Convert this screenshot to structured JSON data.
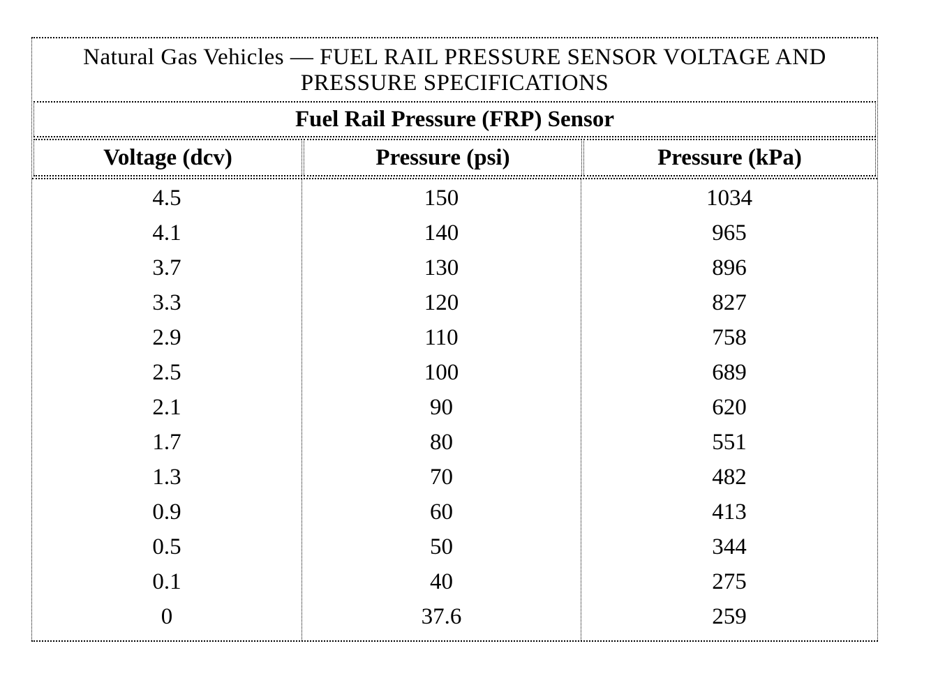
{
  "page": {
    "background": "#ffffff",
    "text_color": "#000000",
    "border_color": "#000000"
  },
  "table": {
    "title_line1": "Natural Gas Vehicles — FUEL RAIL PRESSURE SENSOR VOLTAGE AND",
    "title_line2": "PRESSURE SPECIFICATIONS",
    "subtitle": "Fuel Rail Pressure (FRP) Sensor",
    "columns": [
      "Voltage (dcv)",
      "Pressure (psi)",
      "Pressure (kPa)"
    ],
    "rows": [
      [
        "4.5",
        "150",
        "1034"
      ],
      [
        "4.1",
        "140",
        "965"
      ],
      [
        "3.7",
        "130",
        "896"
      ],
      [
        "3.3",
        "120",
        "827"
      ],
      [
        "2.9",
        "110",
        "758"
      ],
      [
        "2.5",
        "100",
        "689"
      ],
      [
        "2.1",
        "90",
        "620"
      ],
      [
        "1.7",
        "80",
        "551"
      ],
      [
        "1.3",
        "70",
        "482"
      ],
      [
        "0.9",
        "60",
        "413"
      ],
      [
        "0.5",
        "50",
        "344"
      ],
      [
        "0.1",
        "40",
        "275"
      ],
      [
        "0",
        "37.6",
        "259"
      ]
    ]
  }
}
